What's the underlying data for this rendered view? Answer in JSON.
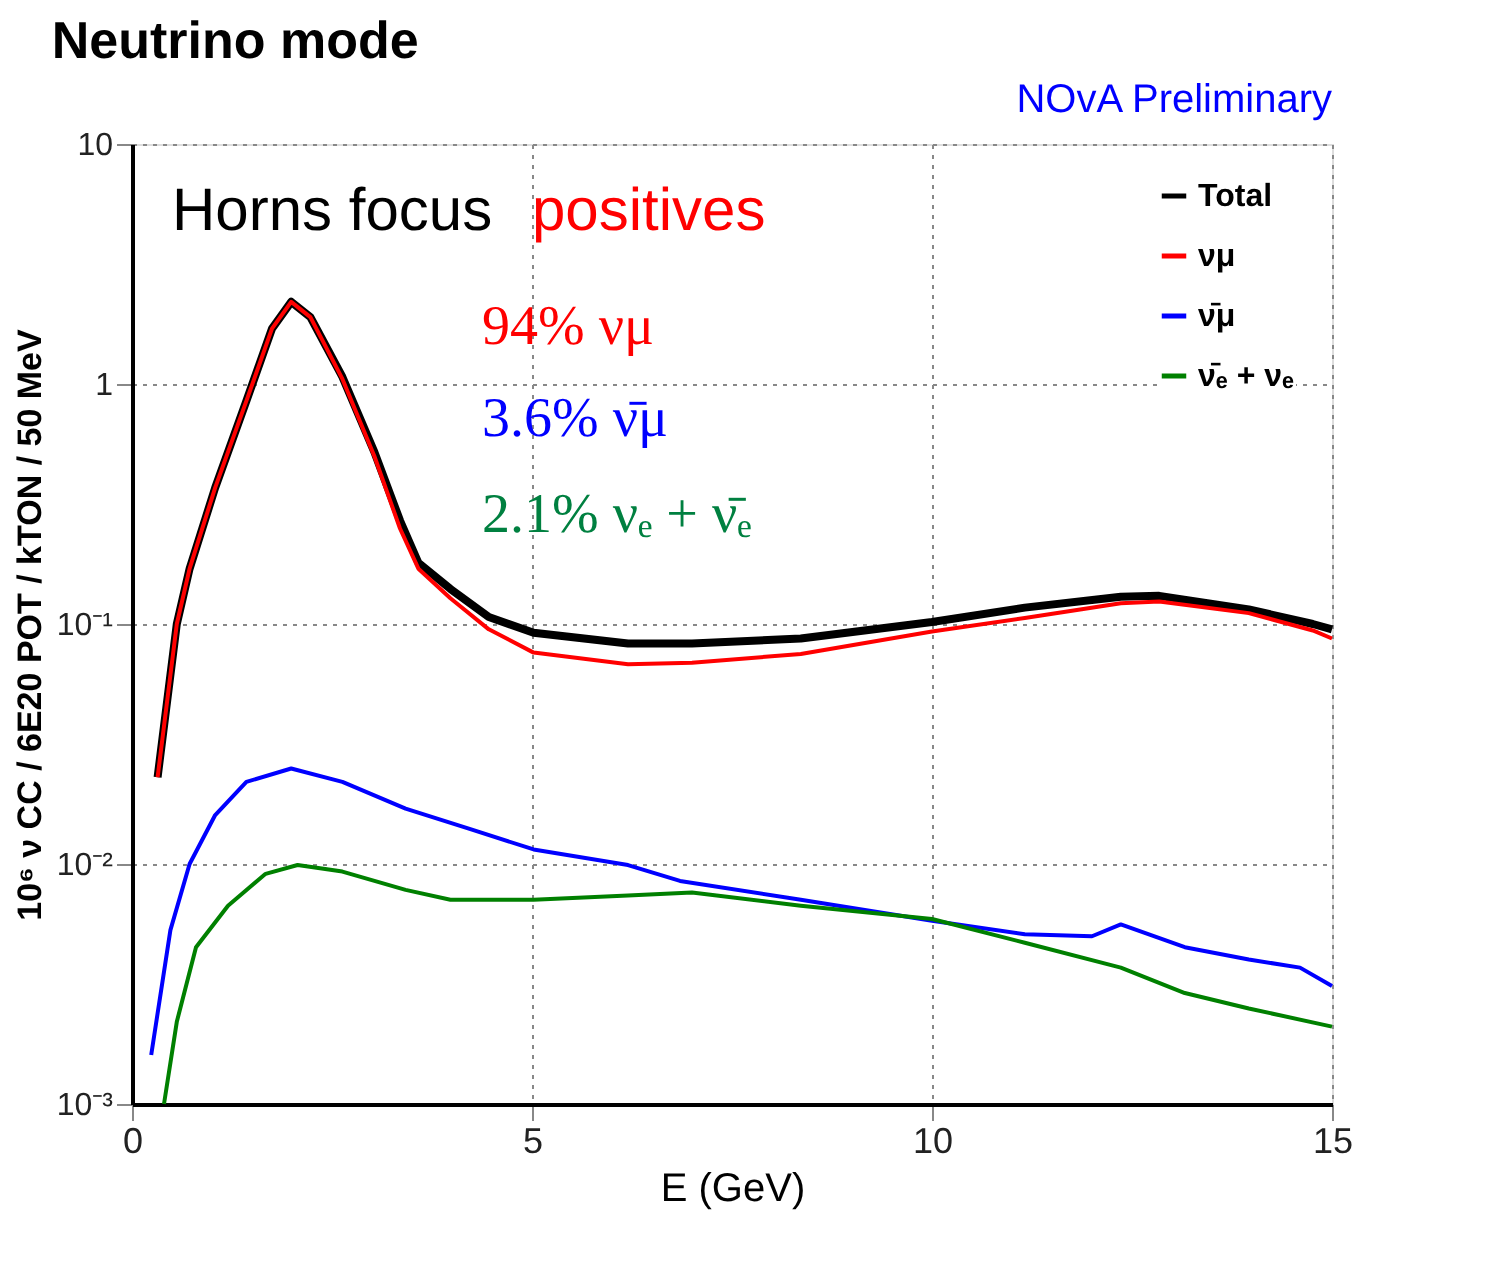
{
  "chart_data": {
    "type": "line",
    "title": "Neutrino mode",
    "xlabel": "E (GeV)",
    "ylabel": "10⁶ ν CC / 6E20 POT / kTON / 50 MeV",
    "annotations": [
      "Horns focus",
      "positives",
      "94% νμ",
      "3.6% ν̄μ",
      "2.1% νₑ + ν̄ₑ",
      "NOvA Preliminary"
    ],
    "log": "y",
    "grid": true,
    "legend": "top right",
    "line_style": "solid",
    "marker": "none",
    "xlim": [
      0,
      15
    ],
    "xticks": [
      0,
      5,
      10,
      15
    ],
    "ylim": [
      0.001,
      10
    ],
    "yticks": [
      {
        "value": 0.001,
        "label": "10⁻³"
      },
      {
        "value": 0.01,
        "label": "10⁻²"
      },
      {
        "value": 0.1,
        "label": "10⁻¹"
      },
      1,
      10
    ],
    "series": [
      {
        "name": "Total",
        "color": "#000000",
        "x": [
          0.32,
          0.56,
          0.72,
          1.04,
          1.43,
          1.75,
          1.99,
          2.23,
          2.63,
          3.03,
          3.35,
          3.58,
          3.98,
          4.46,
          5.02,
          6.2,
          7.0,
          8.36,
          10,
          11.16,
          12.36,
          12.84,
          13.96,
          14.76,
          15
        ],
        "values": [
          0.023,
          0.1,
          0.17,
          0.37,
          0.85,
          1.7,
          2.2,
          1.9,
          1.07,
          0.52,
          0.27,
          0.18,
          0.14,
          0.107,
          0.092,
          0.083,
          0.083,
          0.087,
          0.102,
          0.117,
          0.13,
          0.131,
          0.115,
          0.1,
          0.095
        ]
      },
      {
        "name": "νμ",
        "color": "#ff0000",
        "x": [
          0.32,
          0.56,
          0.72,
          1.04,
          1.43,
          1.75,
          1.99,
          2.23,
          2.63,
          3.03,
          3.35,
          3.58,
          3.98,
          4.46,
          5.02,
          6.2,
          7.0,
          8.36,
          10,
          11.16,
          12.36,
          12.84,
          13.96,
          14.76,
          15
        ],
        "values": [
          0.023,
          0.1,
          0.17,
          0.37,
          0.85,
          1.7,
          2.2,
          1.9,
          1.05,
          0.5,
          0.25,
          0.17,
          0.128,
          0.095,
          0.076,
          0.068,
          0.069,
          0.075,
          0.093,
          0.106,
          0.122,
          0.124,
          0.111,
          0.094,
          0.087
        ]
      },
      {
        "name": "ν̄μ",
        "color": "#0000ff",
        "x": [
          0.24,
          0.48,
          0.72,
          1.04,
          1.43,
          1.99,
          2.63,
          3.42,
          4.22,
          5.02,
          6.2,
          6.85,
          8.36,
          10,
          11.16,
          12.0,
          12.36,
          13.16,
          13.96,
          14.6,
          15
        ],
        "values": [
          0.0016,
          0.0053,
          0.01,
          0.016,
          0.022,
          0.025,
          0.022,
          0.017,
          0.014,
          0.0115,
          0.0099,
          0.0085,
          0.0071,
          0.0058,
          0.0051,
          0.005,
          0.0056,
          0.0045,
          0.004,
          0.0037,
          0.0031
        ]
      },
      {
        "name": "ν̄ₑ + νₑ",
        "color": "#008000",
        "x": [
          0.4,
          0.56,
          0.8,
          1.2,
          1.67,
          2.07,
          2.63,
          3.42,
          3.98,
          5.02,
          6.2,
          7.0,
          8.36,
          10,
          11.16,
          12.36,
          13.16,
          13.96,
          15
        ],
        "values": [
          0.001,
          0.0022,
          0.0045,
          0.0067,
          0.0091,
          0.0099,
          0.0093,
          0.0078,
          0.0071,
          0.0071,
          0.0074,
          0.0076,
          0.0067,
          0.0059,
          0.0047,
          0.0037,
          0.0029,
          0.0025,
          0.0021
        ]
      }
    ]
  }
}
